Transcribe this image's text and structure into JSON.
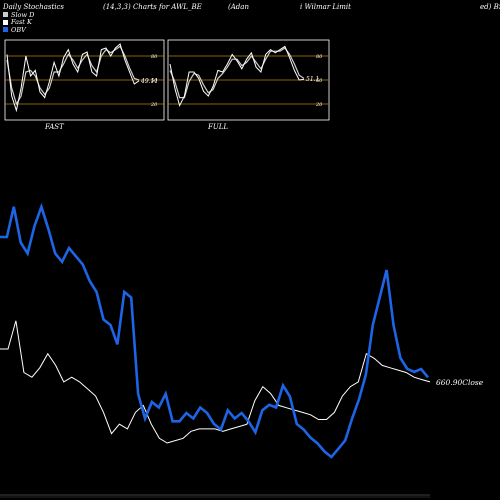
{
  "header": {
    "left": "Daily Stochastics",
    "middle": "(14,3,3) Charts for AWL_BE",
    "right1": "(Adan",
    "right2": "i  Wilmar Limit",
    "right3": "ed) BSE"
  },
  "legend": {
    "items": [
      {
        "label": "Slow D",
        "color": "#cccccc"
      },
      {
        "label": "Fast K",
        "color": "#ffffff"
      },
      {
        "label": "OBV",
        "color": "#1e64e6"
      }
    ]
  },
  "colors": {
    "background": "#000000",
    "obv": "#1e64e6",
    "price": "#ffffff",
    "level_line": "#b8860b",
    "panel_bg": "#000000"
  },
  "chart_data": [
    {
      "type": "line",
      "panel": "FAST",
      "label": "FAST",
      "value_label": "49.11",
      "levels": [
        80,
        50,
        20
      ],
      "ylim": [
        0,
        100
      ],
      "series": [
        {
          "name": "Fast K",
          "values": [
            82,
            30,
            12,
            40,
            80,
            55,
            62,
            35,
            28,
            48,
            72,
            55,
            78,
            88,
            70,
            60,
            82,
            85,
            60,
            55,
            88,
            90,
            80,
            90,
            95,
            75,
            60,
            45,
            49
          ]
        },
        {
          "name": "Slow D",
          "values": [
            75,
            40,
            20,
            30,
            60,
            62,
            55,
            40,
            32,
            40,
            60,
            60,
            70,
            82,
            75,
            65,
            75,
            82,
            68,
            60,
            80,
            88,
            84,
            88,
            92,
            80,
            65,
            52,
            50
          ]
        }
      ]
    },
    {
      "type": "line",
      "panel": "FULL",
      "label": "FULL",
      "value_label": "51.1",
      "levels": [
        80,
        50,
        20
      ],
      "ylim": [
        0,
        100
      ],
      "series": [
        {
          "name": "Fast K",
          "values": [
            70,
            40,
            18,
            30,
            60,
            60,
            52,
            36,
            30,
            42,
            62,
            60,
            70,
            82,
            74,
            64,
            76,
            84,
            66,
            60,
            82,
            88,
            84,
            88,
            92,
            78,
            62,
            50,
            51
          ]
        },
        {
          "name": "Slow D",
          "values": [
            62,
            48,
            28,
            28,
            48,
            58,
            56,
            44,
            34,
            38,
            52,
            58,
            66,
            76,
            76,
            68,
            72,
            80,
            72,
            64,
            76,
            86,
            86,
            86,
            90,
            82,
            70,
            56,
            52
          ]
        }
      ]
    },
    {
      "type": "line",
      "panel": "main",
      "close_label": "660.90Close",
      "ylim": [
        0,
        100
      ],
      "series": [
        {
          "name": "OBV",
          "values": [
            92,
            92,
            103,
            90,
            86,
            96,
            103,
            95,
            86,
            83,
            88,
            85,
            82,
            76,
            72,
            62,
            60,
            53,
            72,
            70,
            35,
            26,
            32,
            30,
            35,
            25,
            25,
            28,
            26,
            30,
            28,
            24,
            22,
            29,
            26,
            28,
            25,
            21,
            29,
            31,
            30,
            38,
            34,
            24,
            22,
            19,
            17,
            14,
            12,
            15,
            18,
            26,
            33,
            42,
            60,
            70,
            80,
            60,
            48,
            44,
            43,
            44,
            41
          ]
        },
        {
          "name": "Close",
          "values": [
            60,
            60,
            72,
            50,
            48,
            52,
            58,
            53,
            46,
            48,
            46,
            43,
            40,
            33,
            24,
            28,
            26,
            33,
            36,
            28,
            22,
            20,
            21,
            22,
            25,
            26,
            26,
            26,
            25,
            26,
            27,
            28,
            38,
            44,
            41,
            36,
            35,
            34,
            33,
            32,
            30,
            30,
            33,
            40,
            44,
            46,
            58,
            56,
            53,
            52,
            51,
            50,
            48,
            47,
            46
          ]
        }
      ]
    }
  ]
}
